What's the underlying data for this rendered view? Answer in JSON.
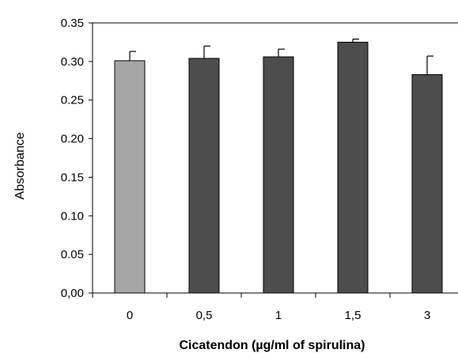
{
  "chart_data": {
    "type": "bar",
    "title": "",
    "xlabel": "Cicatendon (µg/ml of spirulina)",
    "ylabel": "Absorbance",
    "categories": [
      "0",
      "0,5",
      "1",
      "1,5",
      "3"
    ],
    "values": [
      0.301,
      0.304,
      0.306,
      0.325,
      0.283
    ],
    "errors": [
      0.012,
      0.016,
      0.01,
      0.004,
      0.024
    ],
    "ylim": [
      0,
      0.35
    ],
    "yticks": [
      "0,00",
      "0.05",
      "0.10",
      "0.15",
      "0.20",
      "0.25",
      "0.30",
      "0.35"
    ],
    "ytick_values": [
      0,
      0.05,
      0.1,
      0.15,
      0.2,
      0.25,
      0.3,
      0.35
    ],
    "bar_colors": [
      "#a6a6a6",
      "#4d4d4d",
      "#4d4d4d",
      "#4d4d4d",
      "#4d4d4d"
    ],
    "grid": false,
    "legend": "none"
  }
}
